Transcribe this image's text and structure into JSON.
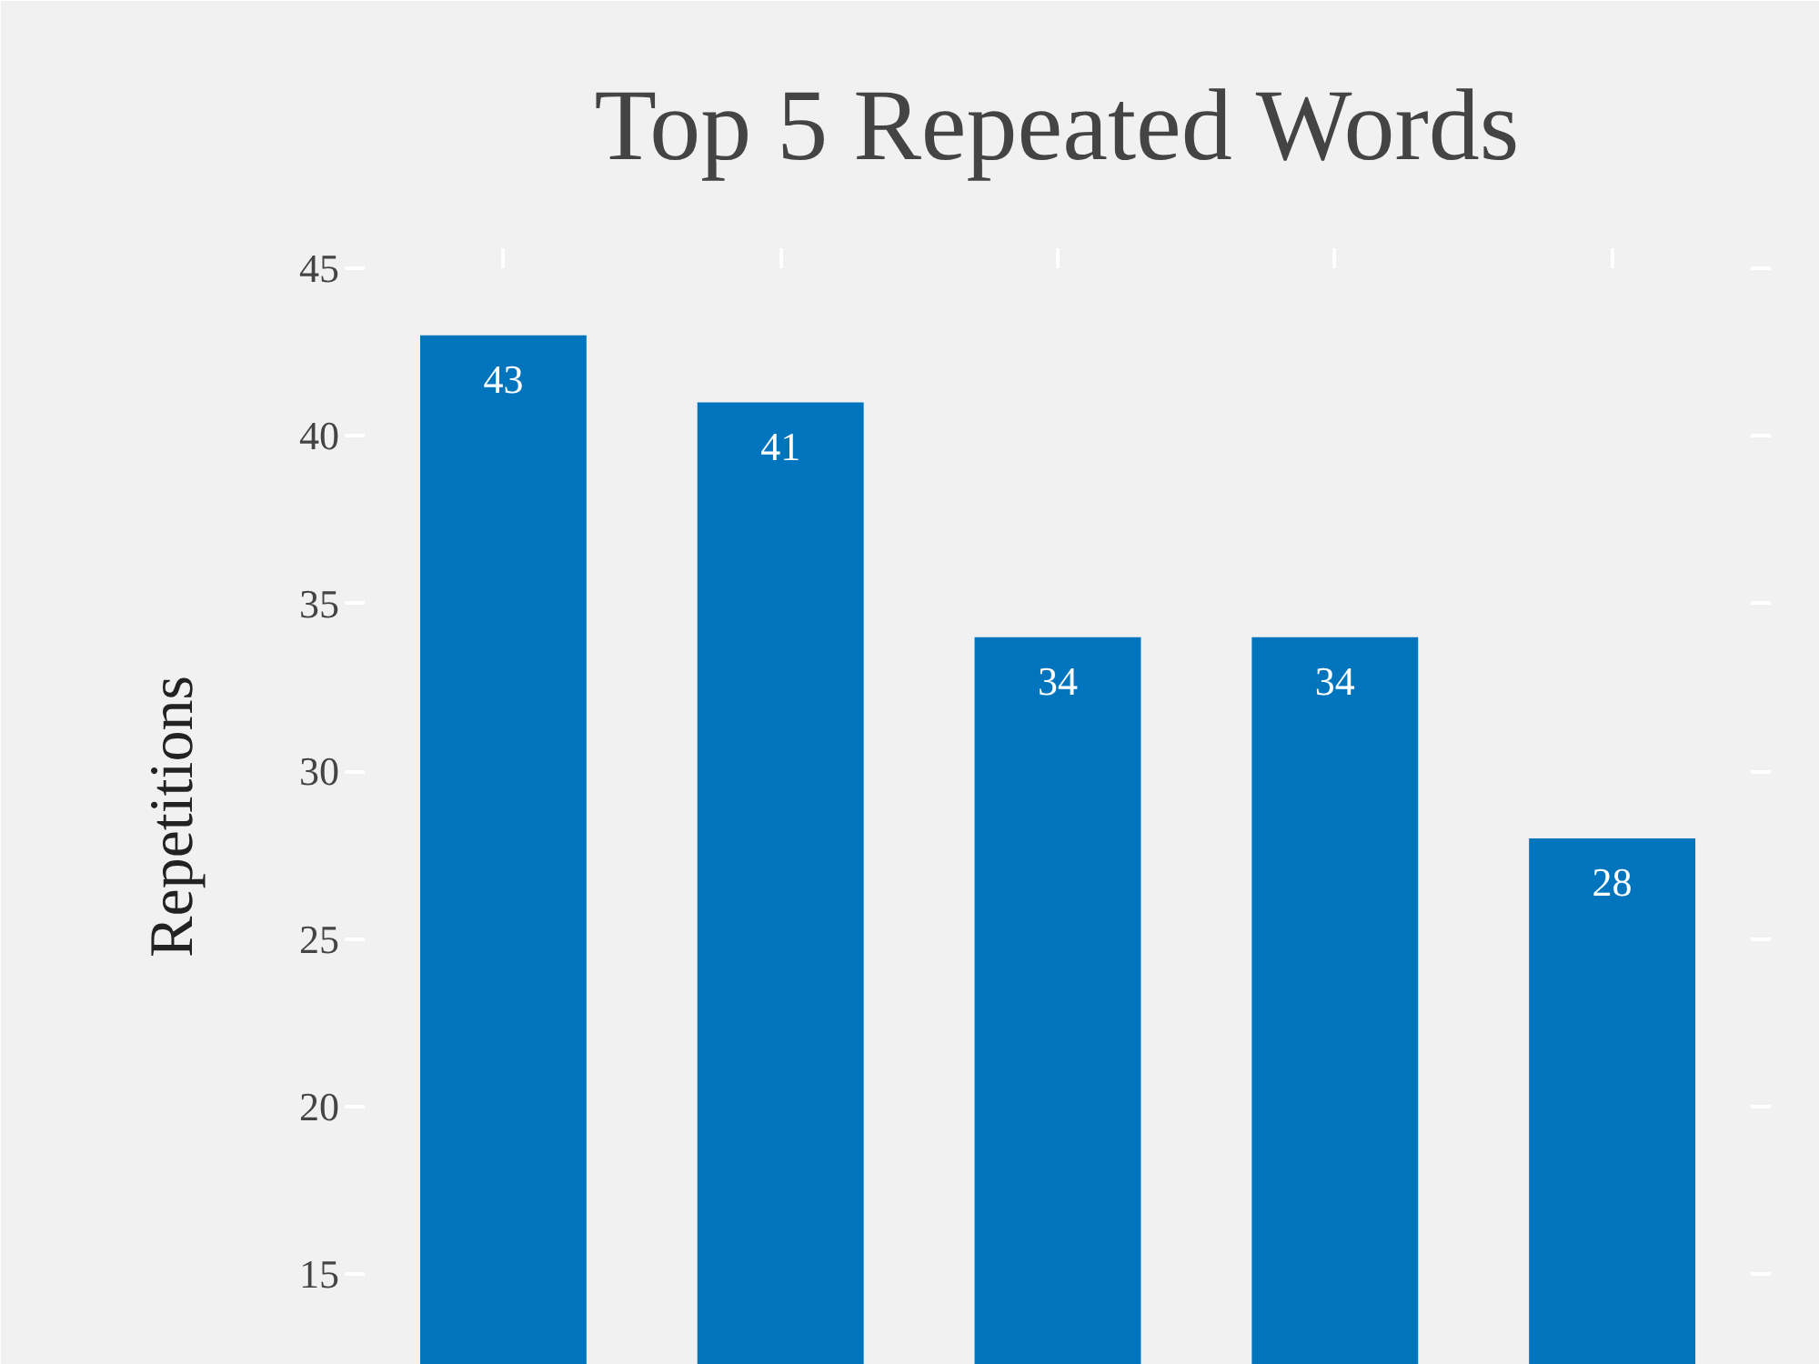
{
  "chart_data": {
    "type": "bar",
    "title": "Top 5 Repeated Words",
    "ylabel": "Repetitions",
    "categories": [
      null,
      null,
      null,
      null,
      null
    ],
    "values": [
      43,
      41,
      34,
      34,
      28
    ],
    "color": "#0075be",
    "ylim": [
      12.3,
      45
    ],
    "yticks": [
      15,
      20,
      25,
      30,
      35,
      40,
      45
    ],
    "data_labels": true,
    "tick_labels": "y"
  }
}
